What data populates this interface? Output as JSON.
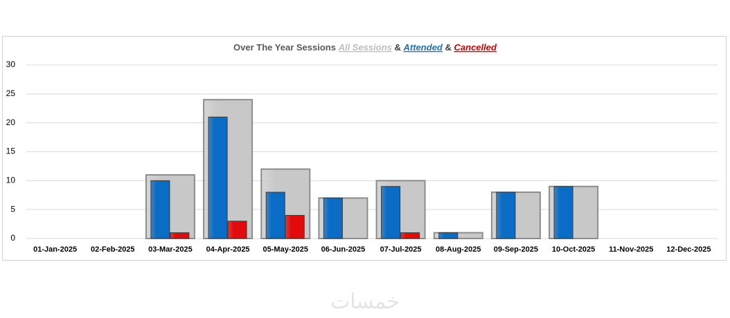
{
  "chart_data": {
    "type": "bar",
    "title": "Over The Year Sessions",
    "title_joiner": "&",
    "categories": [
      "01-Jan-2025",
      "02-Feb-2025",
      "03-Mar-2025",
      "04-Apr-2025",
      "05-May-2025",
      "06-Jun-2025",
      "07-Jul-2025",
      "08-Aug-2025",
      "09-Sep-2025",
      "10-Oct-2025",
      "11-Nov-2025",
      "12-Dec-2025"
    ],
    "series": [
      {
        "name": "All Sessions",
        "color": "#c8c8c8",
        "values": [
          0,
          0,
          11,
          24,
          12,
          7,
          10,
          1,
          8,
          9,
          0,
          0
        ]
      },
      {
        "name": "Attended",
        "color": "#0a6cc4",
        "values": [
          0,
          0,
          10,
          21,
          8,
          7,
          9,
          1,
          8,
          9,
          0,
          0
        ]
      },
      {
        "name": "Cancelled",
        "color": "#e20b0b",
        "values": [
          0,
          0,
          1,
          3,
          4,
          0,
          1,
          0,
          0,
          0,
          0,
          0
        ]
      }
    ],
    "ylim": [
      0,
      30
    ],
    "yticks": [
      0,
      5,
      10,
      15,
      20,
      25,
      30
    ],
    "grid": true
  },
  "watermark": "خمسات"
}
